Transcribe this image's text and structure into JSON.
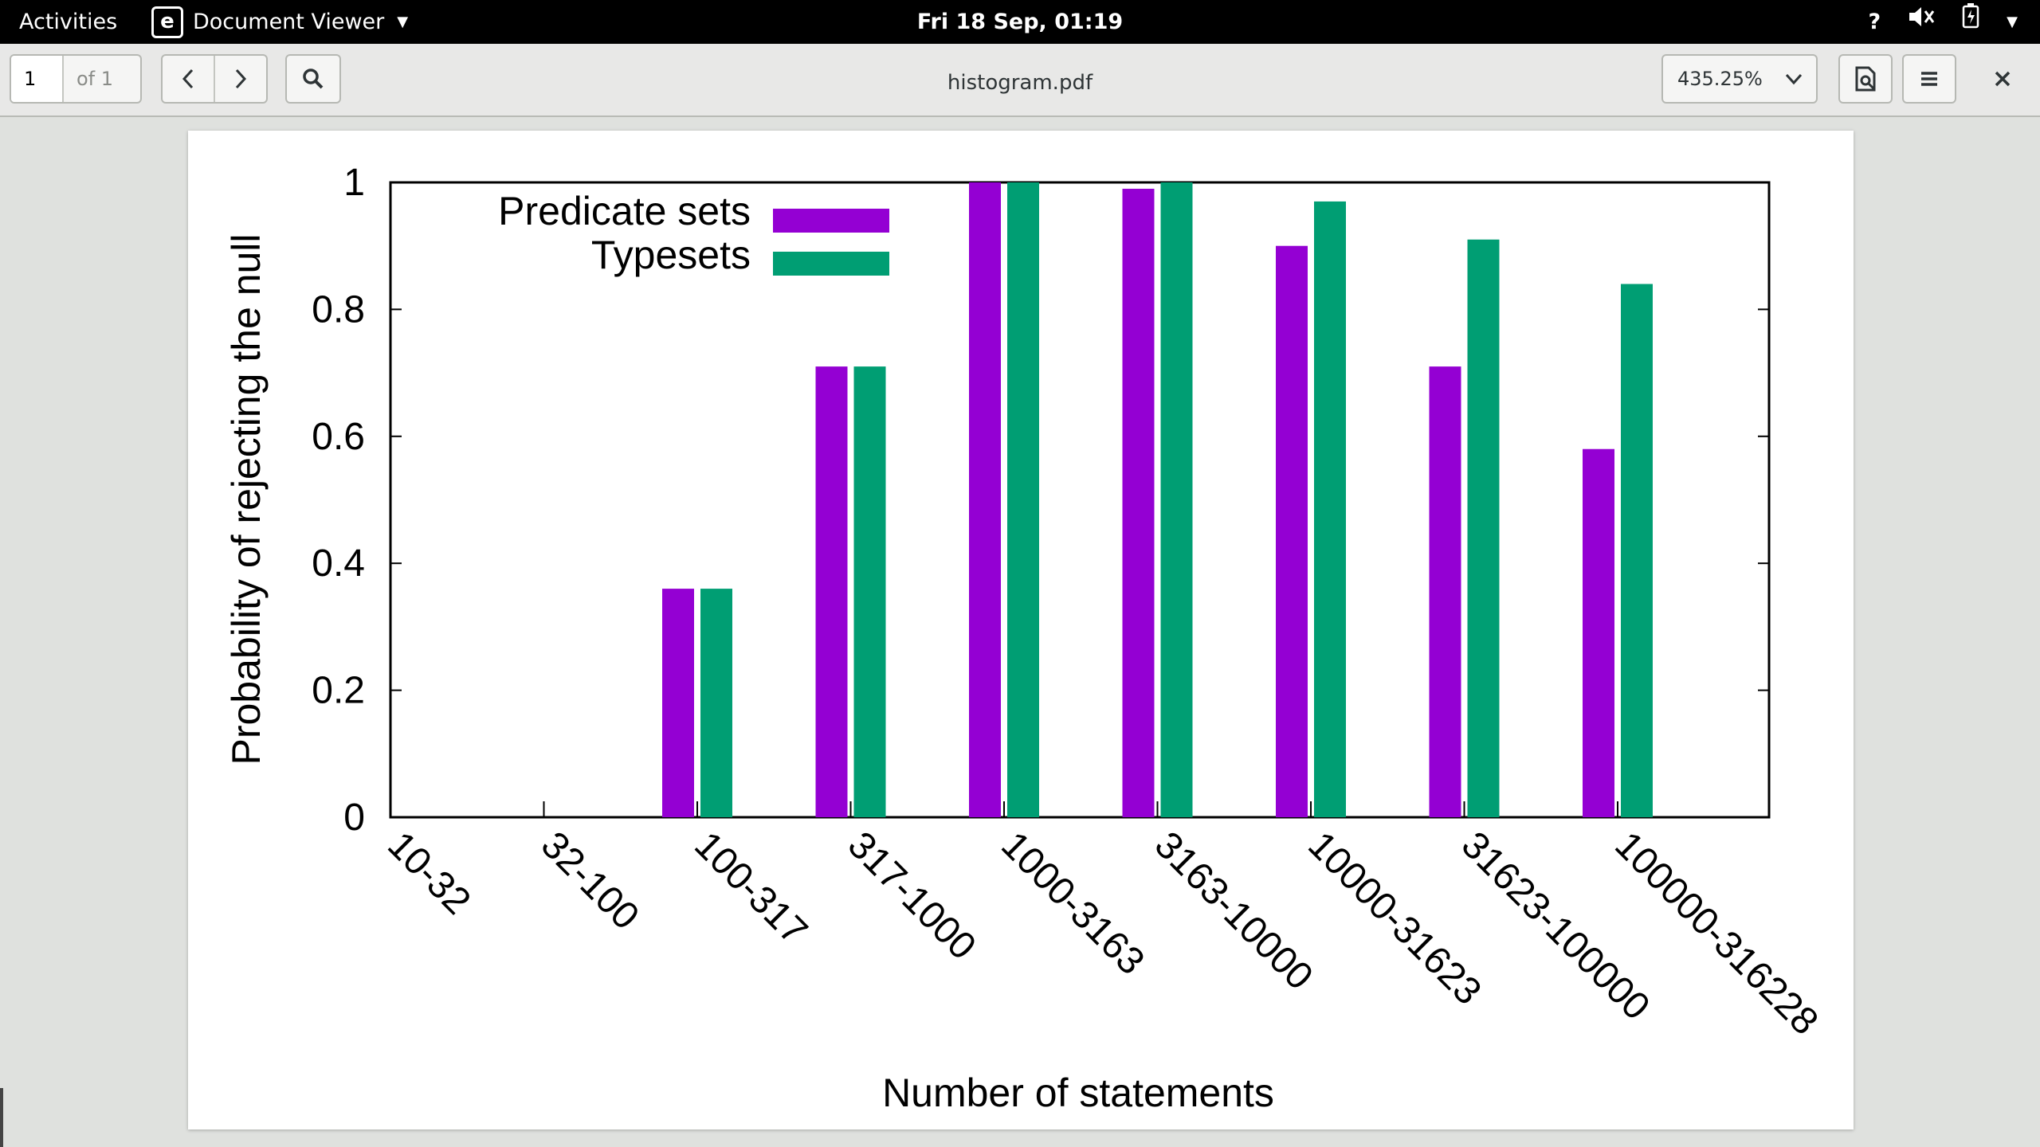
{
  "topbar": {
    "activities": "Activities",
    "app_name": "Document Viewer",
    "clock": "Fri 18 Sep, 01:19",
    "tray_icons": [
      "help-icon",
      "volume-muted-icon",
      "battery-charging-icon",
      "system-menu-caret-icon"
    ]
  },
  "toolbar": {
    "page_number": "1",
    "page_total": "of 1",
    "document_title": "histogram.pdf",
    "zoom_level": "435.25%",
    "icons": [
      "chevron-left-icon",
      "chevron-right-icon",
      "search-icon",
      "annotate-icon",
      "hamburger-menu-icon",
      "close-icon"
    ]
  },
  "colors": {
    "predicate_sets": "#9400d3",
    "typesets": "#009e73"
  },
  "chart_data": {
    "type": "bar",
    "title": "",
    "xlabel": "Number of statements",
    "ylabel": "Probability of rejecting the null",
    "ylim": [
      0,
      1
    ],
    "yticks": [
      "0",
      "0.2",
      "0.4",
      "0.6",
      "0.8",
      "1"
    ],
    "grid": false,
    "legend_position": "top-left",
    "categories": [
      "10-32",
      "32-100",
      "100-317",
      "317-1000",
      "1000-3163",
      "3163-10000",
      "10000-31623",
      "31623-100000",
      "100000-316228"
    ],
    "series": [
      {
        "name": "Predicate sets",
        "color": "#9400d3",
        "values": [
          0,
          0,
          0.36,
          0.71,
          1.0,
          0.99,
          0.9,
          0.71,
          0.58
        ]
      },
      {
        "name": "Typesets",
        "color": "#009e73",
        "values": [
          0,
          0,
          0.36,
          0.71,
          1.0,
          1.0,
          0.97,
          0.91,
          0.84
        ]
      }
    ]
  }
}
